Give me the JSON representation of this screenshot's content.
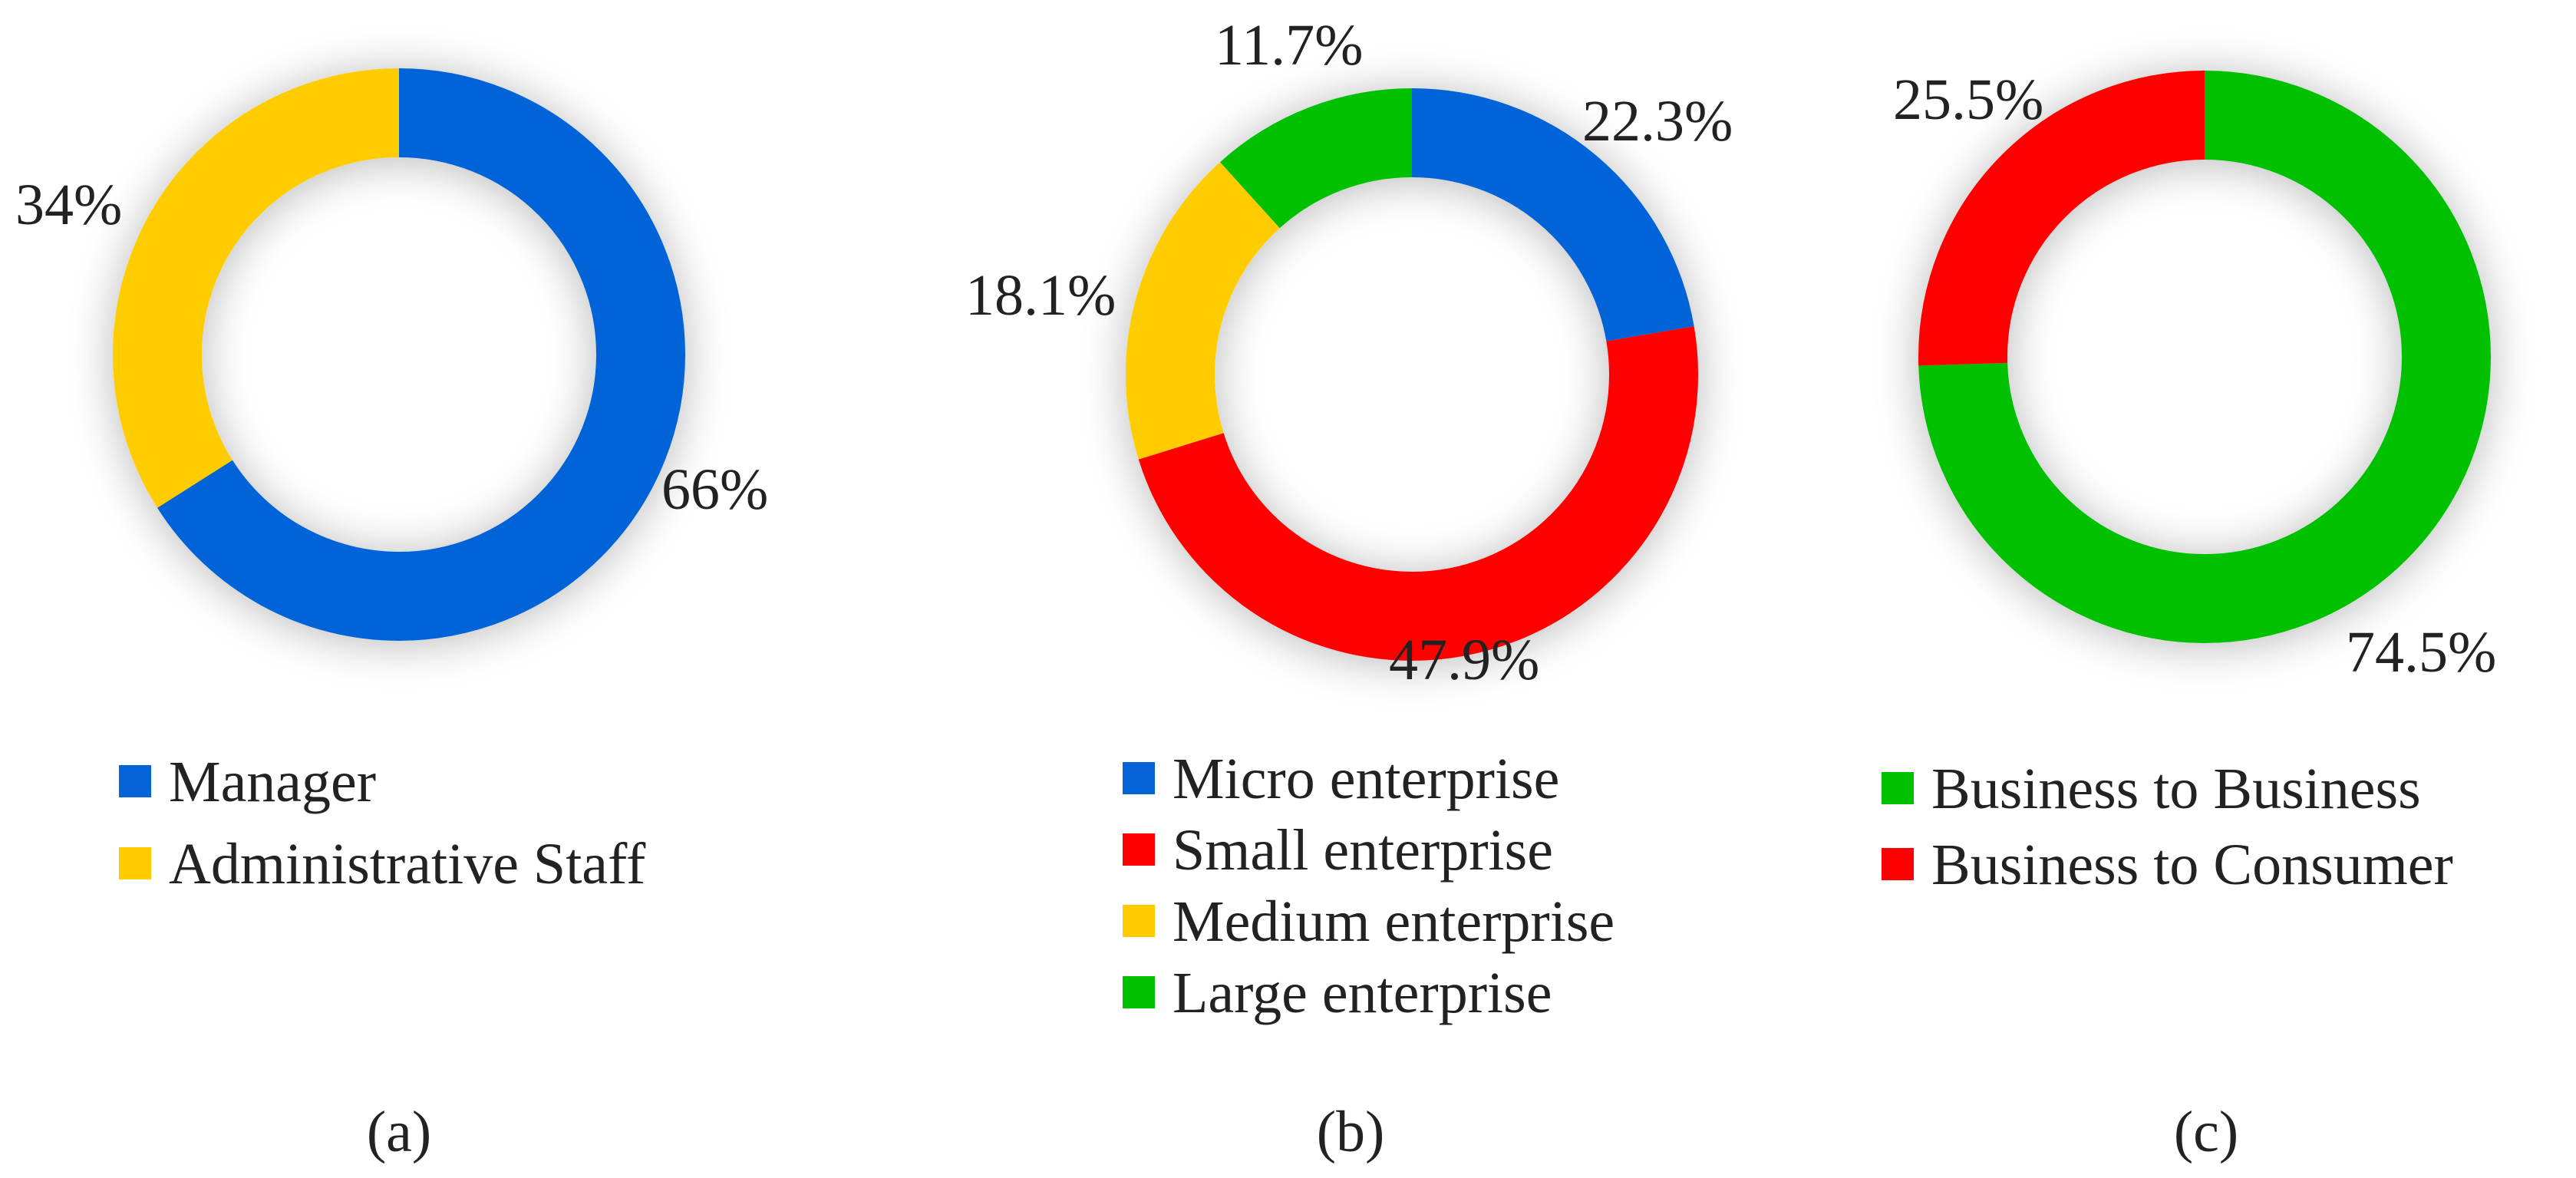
{
  "chart_data": [
    {
      "type": "pie",
      "variant": "donut",
      "panel_label": "(a)",
      "categories": [
        "Manager",
        "Administrative Staff"
      ],
      "values": [
        66,
        34
      ],
      "value_labels": [
        "66%",
        "34%"
      ],
      "colors": [
        "#0563d8",
        "#ffcc00"
      ],
      "legend_position": "bottom-left"
    },
    {
      "type": "pie",
      "variant": "donut",
      "panel_label": "(b)",
      "categories": [
        "Micro enterprise",
        "Small enterprise",
        "Medium enterprise",
        "Large enterprise"
      ],
      "values": [
        22.3,
        47.9,
        18.1,
        11.7
      ],
      "value_labels": [
        "22.3%",
        "47.9%",
        "18.1%",
        "11.7%"
      ],
      "colors": [
        "#0563d8",
        "#ff0000",
        "#ffcc00",
        "#00c000"
      ],
      "legend_position": "bottom-left"
    },
    {
      "type": "pie",
      "variant": "donut",
      "panel_label": "(c)",
      "categories": [
        "Business to Business",
        "Business to Consumer"
      ],
      "values": [
        74.5,
        25.5
      ],
      "value_labels": [
        "74.5%",
        "25.5%"
      ],
      "colors": [
        "#00c000",
        "#ff0000"
      ],
      "legend_position": "bottom-left"
    }
  ]
}
